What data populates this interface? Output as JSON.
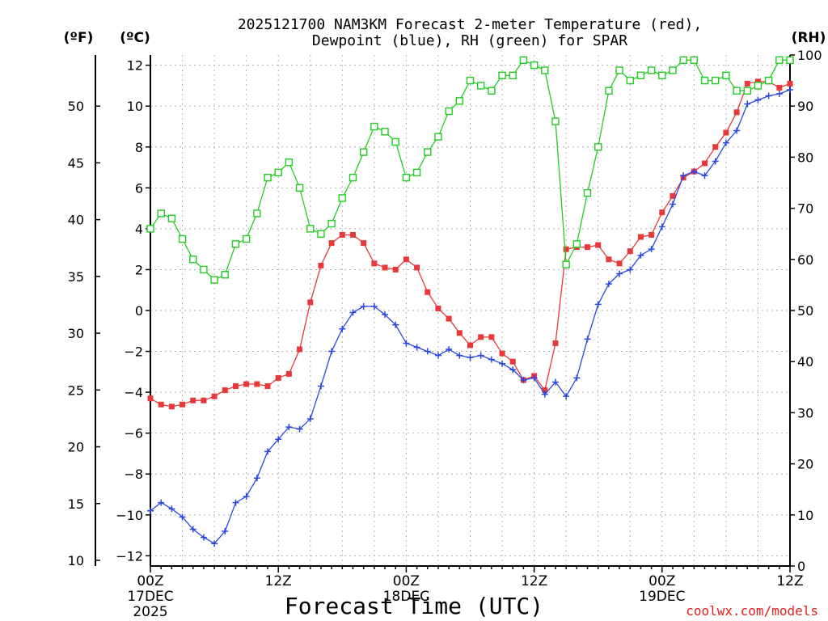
{
  "chart_data": {
    "type": "line",
    "title_line1": "2025121700 NAM3KM Forecast 2-meter Temperature (red),",
    "title_line2": "Dewpoint (blue), RH (green) for SPAR",
    "unit_f": "(ºF)",
    "unit_c": "(ºC)",
    "unit_rh": "(RH)",
    "xlabel": "Forecast Time (UTC)",
    "credit": "coolwx.com/models",
    "x_range_hours": [
      0,
      60
    ],
    "c_range": [
      -12.5,
      12.5
    ],
    "rh_range": [
      0,
      100
    ],
    "c_ticks": [
      "12",
      "10",
      "8",
      "6",
      "4",
      "2",
      "0",
      "−2",
      "−4",
      "−6",
      "−8",
      "−10",
      "−12"
    ],
    "c_tick_values": [
      12,
      10,
      8,
      6,
      4,
      2,
      0,
      -2,
      -4,
      -6,
      -8,
      -10,
      -12
    ],
    "f_ticks": [
      "50",
      "45",
      "40",
      "35",
      "30",
      "25",
      "20",
      "15",
      "10"
    ],
    "f_tick_values": [
      50,
      45,
      40,
      35,
      30,
      25,
      20,
      15,
      10
    ],
    "rh_ticks": [
      "100",
      "90",
      "80",
      "70",
      "60",
      "50",
      "40",
      "30",
      "20",
      "10",
      "0"
    ],
    "rh_tick_values": [
      100,
      90,
      80,
      70,
      60,
      50,
      40,
      30,
      20,
      10,
      0
    ],
    "x_ticks": [
      {
        "hour": 0,
        "label": "00Z",
        "sub1": "17DEC",
        "sub2": "2025"
      },
      {
        "hour": 12,
        "label": "12Z",
        "sub1": "",
        "sub2": ""
      },
      {
        "hour": 24,
        "label": "00Z",
        "sub1": "18DEC",
        "sub2": ""
      },
      {
        "hour": 36,
        "label": "12Z",
        "sub1": "",
        "sub2": ""
      },
      {
        "hour": 48,
        "label": "00Z",
        "sub1": "19DEC",
        "sub2": ""
      },
      {
        "hour": 60,
        "label": "12Z",
        "sub1": "",
        "sub2": ""
      }
    ],
    "colors": {
      "temperature": "#e8383a",
      "dewpoint": "#2a48e0",
      "rh": "#22cc22"
    },
    "series": [
      {
        "name": "Temperature (°C)",
        "axis": "c",
        "marker": "square",
        "values": [
          -4.3,
          -4.6,
          -4.7,
          -4.6,
          -4.4,
          -4.4,
          -4.2,
          -3.9,
          -3.7,
          -3.6,
          -3.6,
          -3.7,
          -3.3,
          -3.1,
          -1.9,
          0.4,
          2.2,
          3.3,
          3.7,
          3.7,
          3.3,
          2.3,
          2.1,
          2.0,
          2.5,
          2.1,
          0.9,
          0.1,
          -0.4,
          -1.1,
          -1.7,
          -1.3,
          -1.3,
          -2.1,
          -2.5,
          -3.4,
          -3.2,
          -3.9,
          -1.6,
          3.0,
          3.1,
          3.1,
          3.2,
          2.5,
          2.3,
          2.9,
          3.6,
          3.7,
          4.8,
          5.6,
          6.5,
          6.8,
          7.2,
          8.0,
          8.7,
          9.7,
          11.1,
          11.2,
          11.2,
          10.9,
          11.1
        ]
      },
      {
        "name": "Dewpoint (°C)",
        "axis": "c",
        "marker": "plus",
        "values": [
          -9.8,
          -9.4,
          -9.7,
          -10.1,
          -10.7,
          -11.1,
          -11.4,
          -10.8,
          -9.4,
          -9.1,
          -8.2,
          -6.9,
          -6.3,
          -5.7,
          -5.8,
          -5.3,
          -3.7,
          -2.0,
          -0.9,
          -0.1,
          0.2,
          0.2,
          -0.2,
          -0.7,
          -1.6,
          -1.8,
          -2.0,
          -2.2,
          -1.9,
          -2.2,
          -2.3,
          -2.2,
          -2.4,
          -2.6,
          -2.9,
          -3.4,
          -3.3,
          -4.1,
          -3.5,
          -4.2,
          -3.3,
          -1.4,
          0.3,
          1.3,
          1.8,
          2.0,
          2.7,
          3.0,
          4.1,
          5.2,
          6.6,
          6.8,
          6.6,
          7.3,
          8.2,
          8.8,
          10.1,
          10.3,
          10.5,
          10.6,
          10.8
        ]
      },
      {
        "name": "RH (%)",
        "axis": "rh",
        "marker": "open-square",
        "values": [
          66,
          69,
          68,
          64,
          60,
          58,
          56,
          57,
          63,
          64,
          69,
          76,
          77,
          79,
          74,
          66,
          65,
          67,
          72,
          76,
          81,
          86,
          85,
          83,
          76,
          77,
          81,
          84,
          89,
          91,
          95,
          94,
          93,
          96,
          96,
          99,
          98,
          97,
          87,
          59,
          63,
          73,
          82,
          93,
          97,
          95,
          96,
          97,
          96,
          97,
          99,
          99,
          95,
          95,
          96,
          93,
          93,
          94,
          95,
          99,
          99
        ]
      }
    ]
  }
}
